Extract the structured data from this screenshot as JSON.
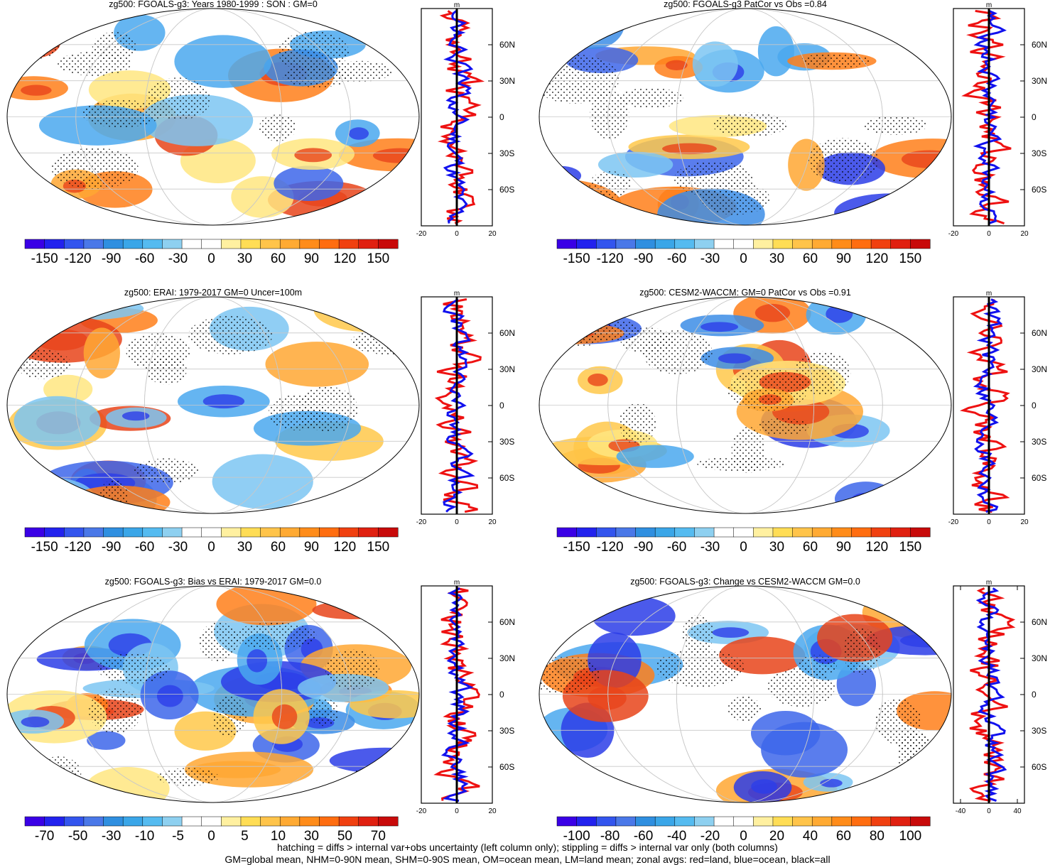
{
  "chart_data": [
    {
      "type": "heatmap",
      "title": "zg500: FGOALS-g3: Years 1980-1999 : SON : GM=0",
      "colorbar": {
        "ticks": [
          "-150",
          "-120",
          "-90",
          "-60",
          "-30",
          "0",
          "30",
          "60",
          "90",
          "120",
          "150"
        ]
      },
      "zonal": {
        "unit": "m",
        "xlim": [
          -20,
          20
        ],
        "xticks": [
          "-20",
          "0",
          "20"
        ],
        "lat_labels": [
          "60N",
          "30N",
          "0",
          "30S",
          "60S"
        ]
      }
    },
    {
      "type": "heatmap",
      "title": "zg500: FGOALS-g3 PatCor vs Obs =0.84",
      "colorbar": {
        "ticks": [
          "-150",
          "-120",
          "-90",
          "-60",
          "-30",
          "0",
          "30",
          "60",
          "90",
          "120",
          "150"
        ]
      },
      "zonal": {
        "unit": "m",
        "xlim": [
          -20,
          20
        ],
        "xticks": [
          "-20",
          "0",
          "20"
        ],
        "lat_labels": [
          "60N",
          "30N",
          "0",
          "30S",
          "60S"
        ]
      }
    },
    {
      "type": "heatmap",
      "title": "zg500: ERAI: 1979-2017 GM=0 Uncer=100m",
      "colorbar": {
        "ticks": [
          "-150",
          "-120",
          "-90",
          "-60",
          "-30",
          "0",
          "30",
          "60",
          "90",
          "120",
          "150"
        ]
      },
      "zonal": {
        "unit": "m",
        "xlim": [
          -20,
          20
        ],
        "xticks": [
          "-20",
          "0",
          "20"
        ],
        "lat_labels": [
          "60N",
          "30N",
          "0",
          "30S",
          "60S"
        ]
      }
    },
    {
      "type": "heatmap",
      "title": "zg500: CESM2-WACCM: GM=0 PatCor vs Obs =0.91",
      "colorbar": {
        "ticks": [
          "-150",
          "-120",
          "-90",
          "-60",
          "-30",
          "0",
          "30",
          "60",
          "90",
          "120",
          "150"
        ]
      },
      "zonal": {
        "unit": "m",
        "xlim": [
          -20,
          20
        ],
        "xticks": [
          "-20",
          "0",
          "20"
        ],
        "lat_labels": [
          "60N",
          "30N",
          "0",
          "30S",
          "60S"
        ]
      }
    },
    {
      "type": "heatmap",
      "title": "zg500: FGOALS-g3: Bias vs ERAI: 1979-2017  GM=0.0",
      "colorbar": {
        "ticks": [
          "-70",
          "-50",
          "-30",
          "-10",
          "-5",
          "0",
          "5",
          "10",
          "30",
          "50",
          "70"
        ]
      },
      "zonal": {
        "unit": "m",
        "xlim": [
          -20,
          20
        ],
        "xticks": [
          "-20",
          "0",
          "20"
        ],
        "lat_labels": [
          "60N",
          "30N",
          "0",
          "30S",
          "60S"
        ]
      }
    },
    {
      "type": "heatmap",
      "title": "zg500: FGOALS-g3: Change vs CESM2-WACCM GM=0.0",
      "colorbar": {
        "ticks": [
          "-100",
          "-80",
          "-60",
          "-40",
          "-20",
          "0",
          "20",
          "40",
          "60",
          "80",
          "100"
        ]
      },
      "zonal": {
        "unit": "m",
        "xlim": [
          -50,
          50
        ],
        "xticks": [
          "-40",
          "0",
          "40"
        ],
        "lat_labels": [
          "60N",
          "30N",
          "0",
          "30S",
          "60S"
        ]
      }
    }
  ],
  "palette": [
    "#3a00e6",
    "#2222ee",
    "#3355ee",
    "#4a78e8",
    "#2f8fe0",
    "#3aa6e8",
    "#55bbf0",
    "#8ed0f0",
    "#ffffff",
    "#ffffff",
    "#fff0a0",
    "#ffdd55",
    "#ffc44a",
    "#ffaa33",
    "#ff8c1a",
    "#ff6d10",
    "#f04010",
    "#e02010",
    "#c80a0a"
  ],
  "footer": {
    "line1": "hatching = diffs > internal var+obs uncertainty (left column only); stippling = diffs > internal var only (both columns)",
    "line2": "GM=global mean, NHM=0-90N mean, SHM=0-90S mean, OM=ocean mean, LM=land mean; zonal avgs: red=land, blue=ocean, black=all"
  }
}
